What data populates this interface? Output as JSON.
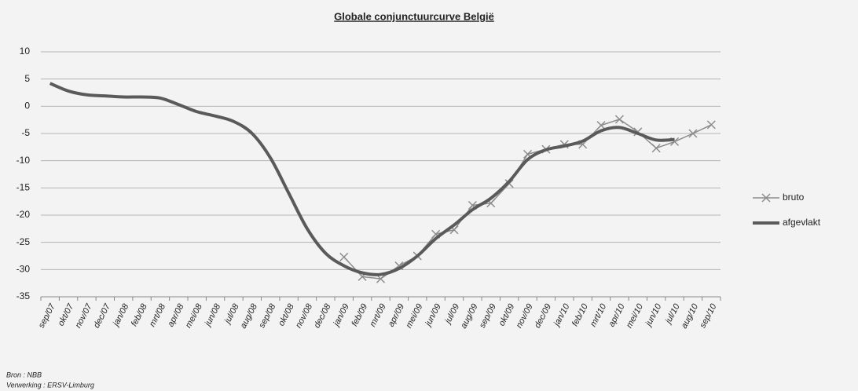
{
  "chart_data": {
    "type": "line",
    "title": "Globale conjunctuurcurve België",
    "categories": [
      "sep/07",
      "okt/07",
      "nov/07",
      "dec/07",
      "jan/08",
      "feb/08",
      "mrt/08",
      "apr/08",
      "mei/08",
      "jun/08",
      "jul/08",
      "aug/08",
      "sep/08",
      "okt/08",
      "nov/08",
      "dec/08",
      "jan/09",
      "feb/09",
      "mrt/09",
      "apr/09",
      "mei/09",
      "jun/09",
      "jul/09",
      "aug/09",
      "sep/09",
      "okt/09",
      "nov/09",
      "dec/09",
      "jan/10",
      "feb/10",
      "mrt/10",
      "apr/10",
      "mei/10",
      "jun/10",
      "jul/10",
      "aug/10",
      "sep/10"
    ],
    "series": [
      {
        "name": "bruto",
        "color": "#8c8c8c",
        "marker": "x",
        "values": [
          null,
          null,
          null,
          null,
          null,
          null,
          null,
          null,
          null,
          null,
          null,
          null,
          null,
          null,
          null,
          null,
          -27.7,
          -31.3,
          -31.7,
          -29.3,
          -27.5,
          -23.5,
          -22.7,
          -18.2,
          -17.8,
          -14.2,
          -8.8,
          -7.9,
          -7.0,
          -7.0,
          -3.5,
          -2.4,
          -4.7,
          -7.7,
          -6.5,
          -5.0,
          -3.4
        ]
      },
      {
        "name": "afgevlakt",
        "color": "#5a5a5a",
        "smooth": true,
        "values": [
          4.2,
          2.8,
          2.1,
          1.9,
          1.7,
          1.7,
          1.5,
          0.3,
          -1.0,
          -1.8,
          -2.8,
          -5.0,
          -9.5,
          -16.0,
          -22.5,
          -27.0,
          -29.3,
          -30.6,
          -30.9,
          -29.8,
          -27.5,
          -24.3,
          -21.8,
          -19.0,
          -16.9,
          -13.8,
          -9.8,
          -8.0,
          -7.3,
          -6.4,
          -4.5,
          -3.9,
          -5.0,
          -6.2,
          -6.1,
          null,
          null
        ]
      }
    ],
    "ylim": [
      -35,
      10
    ],
    "yticks": [
      -35,
      -30,
      -25,
      -20,
      -15,
      -10,
      -5,
      0,
      5,
      10
    ],
    "grid": true,
    "legend": "right",
    "footnotes": [
      "Bron : NBB",
      "Verwerking : ERSV-Limburg"
    ]
  }
}
